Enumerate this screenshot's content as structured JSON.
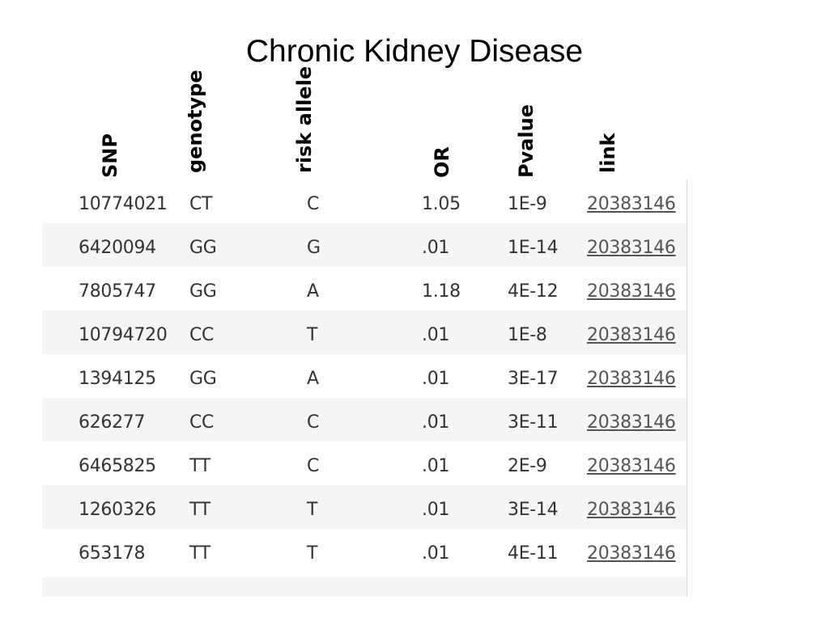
{
  "title": "Chronic Kidney Disease",
  "headers": {
    "snp": "SNP",
    "genotype": "genotype",
    "risk_allele": "risk allele",
    "or": "OR",
    "pvalue": "Pvalue",
    "link": "link"
  },
  "rows": [
    {
      "snp": "10774021",
      "genotype": "CT",
      "risk": "C",
      "or": "1.05",
      "pvalue": "1E-9",
      "link": "20383146"
    },
    {
      "snp": "6420094",
      "genotype": "GG",
      "risk": "G",
      "or": ".01",
      "pvalue": "1E-14",
      "link": "20383146"
    },
    {
      "snp": "7805747",
      "genotype": "GG",
      "risk": "A",
      "or": "1.18",
      "pvalue": "4E-12",
      "link": "20383146"
    },
    {
      "snp": "10794720",
      "genotype": "CC",
      "risk": "T",
      "or": ".01",
      "pvalue": "1E-8",
      "link": "20383146"
    },
    {
      "snp": "1394125",
      "genotype": "GG",
      "risk": "A",
      "or": ".01",
      "pvalue": "3E-17",
      "link": "20383146"
    },
    {
      "snp": "626277",
      "genotype": "CC",
      "risk": "C",
      "or": ".01",
      "pvalue": "3E-11",
      "link": "20383146"
    },
    {
      "snp": "6465825",
      "genotype": "TT",
      "risk": "C",
      "or": ".01",
      "pvalue": "2E-9",
      "link": "20383146"
    },
    {
      "snp": "1260326",
      "genotype": "TT",
      "risk": "T",
      "or": ".01",
      "pvalue": "3E-14",
      "link": "20383146"
    },
    {
      "snp": "653178",
      "genotype": "TT",
      "risk": "T",
      "or": ".01",
      "pvalue": "4E-11",
      "link": "20383146"
    }
  ]
}
